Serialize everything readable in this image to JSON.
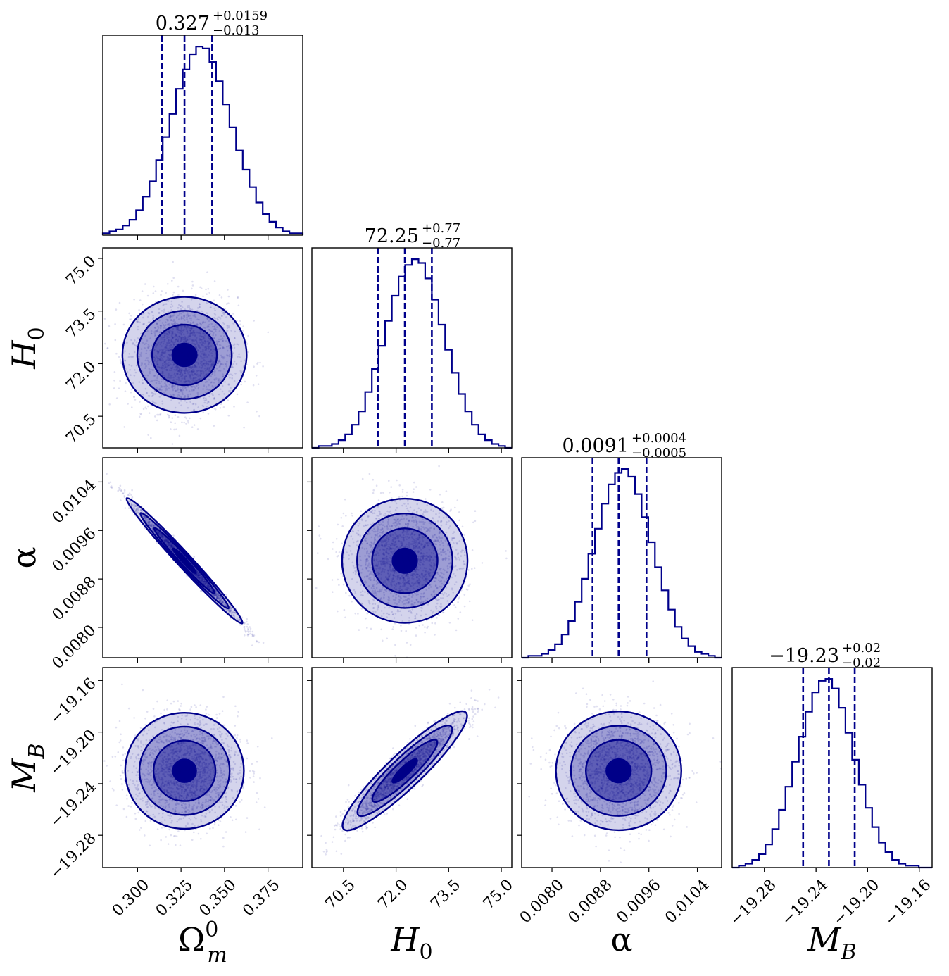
{
  "chart_data": {
    "type": "corner",
    "color": "#00008b",
    "fill_colors": [
      "#d4d4ec",
      "#9d9dd4",
      "#5e5eb6",
      "#000088"
    ],
    "parameters": [
      {
        "id": "om",
        "label_base": "Ω",
        "label_sup": "0",
        "label_sub": "m",
        "range": [
          0.28,
          0.395
        ],
        "ticks": [
          0.3,
          0.325,
          0.35,
          0.375
        ],
        "tick_labels": [
          "0.300",
          "0.325",
          "0.350",
          "0.375"
        ],
        "median": 0.327,
        "lower": 0.314,
        "upper": 0.3429,
        "title_value": "0.327",
        "title_plus": "+0.0159",
        "title_minus": "−0.013"
      },
      {
        "id": "h0",
        "label_base": "H",
        "label_sup": "",
        "label_sub": "0",
        "range": [
          69.6,
          75.3
        ],
        "ticks": [
          70.5,
          72.0,
          73.5,
          75.0
        ],
        "tick_labels": [
          "70.5",
          "72.0",
          "73.5",
          "75.0"
        ],
        "median": 72.25,
        "lower": 71.48,
        "upper": 73.02,
        "title_value": "72.25",
        "title_plus": "+0.77",
        "title_minus": "−0.77"
      },
      {
        "id": "alpha",
        "label_base": "α",
        "label_sup": "",
        "label_sub": "",
        "range": [
          0.0075,
          0.0108
        ],
        "ticks": [
          0.008,
          0.0088,
          0.0096,
          0.0104
        ],
        "tick_labels": [
          "0.0080",
          "0.0088",
          "0.0096",
          "0.0104"
        ],
        "median": 0.0091,
        "lower": 0.00867,
        "upper": 0.00956,
        "title_value": "0.0091",
        "title_plus": "+0.0004",
        "title_minus": "−0.0005"
      },
      {
        "id": "mb",
        "label_base": "M",
        "label_sup": "",
        "label_sub": "B",
        "range": [
          -19.305,
          -19.15
        ],
        "ticks": [
          -19.28,
          -19.24,
          -19.2,
          -19.16
        ],
        "tick_labels": [
          "−19.28",
          "−19.24",
          "−19.20",
          "−19.16"
        ],
        "median": -19.23,
        "lower": -19.25,
        "upper": -19.21,
        "title_value": "−19.23",
        "title_plus": "+0.02",
        "title_minus": "−0.02"
      }
    ],
    "histograms": [
      {
        "param": "om",
        "bins": [
          0.28,
          0.395
        ],
        "counts": [
          1,
          2,
          3,
          5,
          8,
          13,
          20,
          28,
          39,
          51,
          63,
          76,
          86,
          94,
          98,
          97,
          90,
          80,
          68,
          56,
          44,
          34,
          25,
          17,
          11,
          7,
          4,
          2,
          1,
          1
        ]
      },
      {
        "param": "h0",
        "bins": [
          69.6,
          75.3
        ],
        "counts": [
          0,
          1,
          1,
          2,
          4,
          7,
          12,
          19,
          29,
          41,
          53,
          66,
          79,
          89,
          95,
          98,
          96,
          88,
          77,
          64,
          51,
          39,
          28,
          19,
          12,
          7,
          4,
          2,
          1,
          0
        ]
      },
      {
        "param": "alpha",
        "bins": [
          0.0075,
          0.0108
        ],
        "counts": [
          0,
          1,
          1,
          2,
          4,
          7,
          12,
          19,
          29,
          41,
          54,
          67,
          80,
          90,
          96,
          98,
          94,
          85,
          73,
          60,
          47,
          35,
          25,
          16,
          10,
          6,
          3,
          2,
          1,
          0
        ]
      },
      {
        "param": "mb",
        "bins": [
          -19.305,
          -19.15
        ],
        "counts": [
          0,
          1,
          2,
          4,
          7,
          12,
          20,
          30,
          42,
          55,
          68,
          81,
          91,
          97,
          98,
          93,
          83,
          70,
          56,
          43,
          31,
          21,
          13,
          8,
          4,
          2,
          1,
          1,
          0,
          0
        ]
      }
    ],
    "pairs": [
      {
        "x": "om",
        "y": "h0",
        "mean": [
          0.327,
          72.25
        ],
        "sd": [
          0.0145,
          0.77
        ],
        "corr": 0.0
      },
      {
        "x": "om",
        "y": "alpha",
        "mean": [
          0.327,
          0.0091
        ],
        "sd": [
          0.0145,
          0.00045
        ],
        "corr": -0.99
      },
      {
        "x": "h0",
        "y": "alpha",
        "mean": [
          72.25,
          0.0091
        ],
        "sd": [
          0.77,
          0.00045
        ],
        "corr": 0.0
      },
      {
        "x": "om",
        "y": "mb",
        "mean": [
          0.327,
          -19.23
        ],
        "sd": [
          0.0145,
          0.02
        ],
        "corr": 0.0
      },
      {
        "x": "h0",
        "y": "mb",
        "mean": [
          72.25,
          -19.23
        ],
        "sd": [
          0.77,
          0.02
        ],
        "corr": 0.93
      },
      {
        "x": "alpha",
        "y": "mb",
        "mean": [
          0.0091,
          -19.23
        ],
        "sd": [
          0.00045,
          0.02
        ],
        "corr": 0.0
      }
    ],
    "grid": false,
    "legend": "none"
  }
}
